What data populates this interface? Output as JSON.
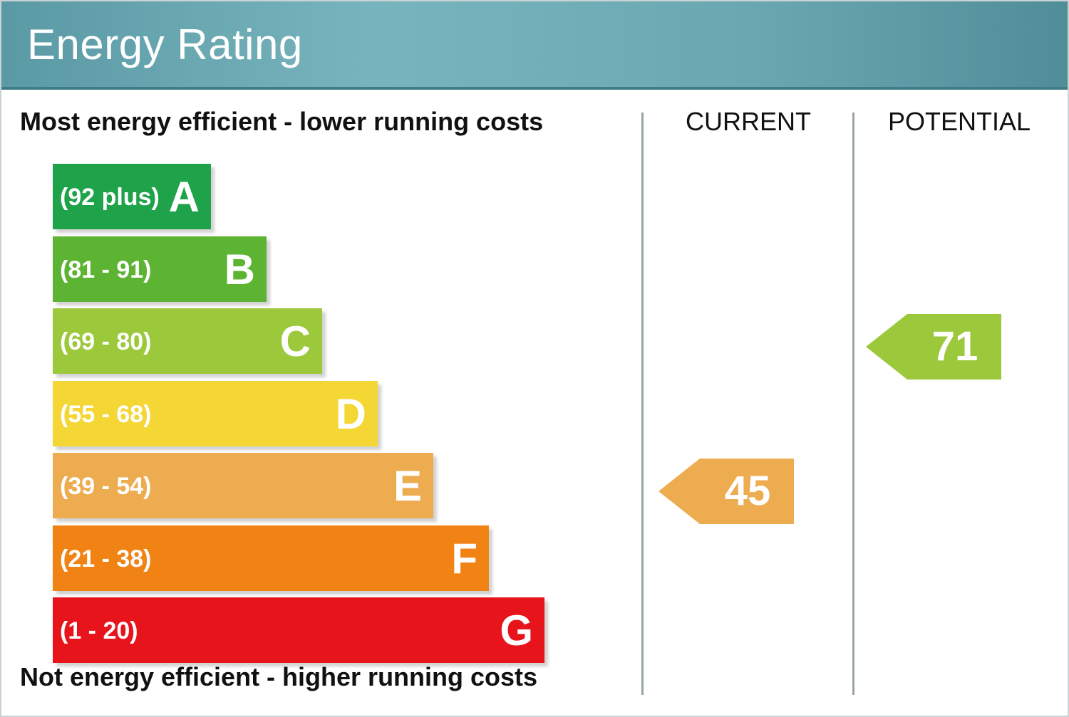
{
  "header": {
    "title": "Energy Rating"
  },
  "captions": {
    "top": "Most energy efficient - lower running costs",
    "bottom": "Not energy efficient - higher running costs"
  },
  "columns": {
    "current": "CURRENT",
    "potential": "POTENTIAL"
  },
  "chart_data": {
    "type": "bar",
    "title": "Energy Rating",
    "bands": [
      {
        "letter": "A",
        "range": "(92 plus)",
        "min": 92,
        "max": 100,
        "color": "#1ea24a"
      },
      {
        "letter": "B",
        "range": "(81 - 91)",
        "min": 81,
        "max": 91,
        "color": "#5cb432"
      },
      {
        "letter": "C",
        "range": "(69 - 80)",
        "min": 69,
        "max": 80,
        "color": "#9cc83c"
      },
      {
        "letter": "D",
        "range": "(55 - 68)",
        "min": 55,
        "max": 68,
        "color": "#f4d635"
      },
      {
        "letter": "E",
        "range": "(39 - 54)",
        "min": 39,
        "max": 54,
        "color": "#eeac50"
      },
      {
        "letter": "F",
        "range": "(21 - 38)",
        "min": 21,
        "max": 38,
        "color": "#f18214"
      },
      {
        "letter": "G",
        "range": "(1 - 20)",
        "min": 1,
        "max": 20,
        "color": "#e8141c"
      }
    ],
    "current": {
      "value": 45,
      "band": "E",
      "color": "#eeac50"
    },
    "potential": {
      "value": 71,
      "band": "C",
      "color": "#9cc83c"
    }
  }
}
